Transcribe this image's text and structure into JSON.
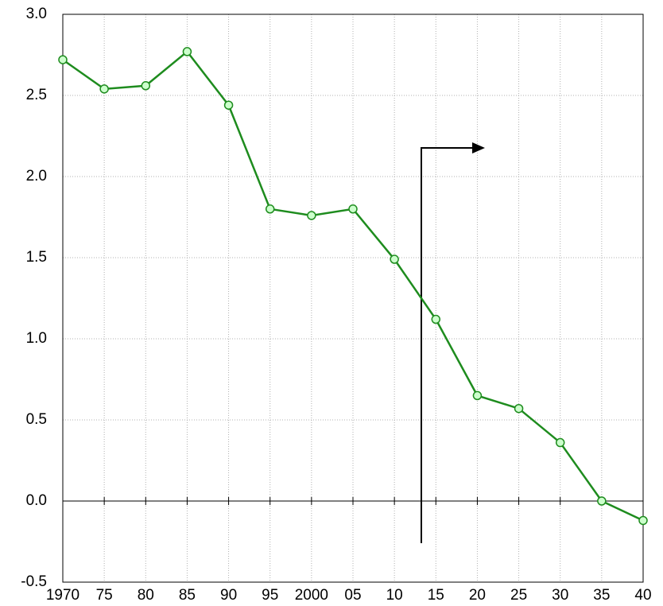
{
  "chart_data": {
    "type": "line",
    "x": [
      1970,
      1975,
      1980,
      1985,
      1990,
      1995,
      2000,
      2005,
      2010,
      2015,
      2020,
      2025,
      2030,
      2035,
      2040
    ],
    "series": [
      {
        "color": "#1e8c1e",
        "marker_fill": "#ccffcc",
        "values": [
          2.72,
          2.54,
          2.56,
          2.77,
          2.44,
          1.8,
          1.76,
          1.8,
          1.49,
          1.12,
          0.65,
          0.57,
          0.36,
          0.0,
          -0.12
        ]
      }
    ],
    "xlim": [
      1970,
      2040
    ],
    "xticks": [
      1970,
      {
        "value": 1975,
        "label": "75"
      },
      {
        "value": 1980,
        "label": "80"
      },
      {
        "value": 1985,
        "label": "85"
      },
      {
        "value": 1990,
        "label": "90"
      },
      {
        "value": 1995,
        "label": "95"
      },
      2000,
      {
        "value": 2005,
        "label": "05"
      },
      {
        "value": 2010,
        "label": "10"
      },
      {
        "value": 2015,
        "label": "15"
      },
      {
        "value": 2020,
        "label": "20"
      },
      {
        "value": 2025,
        "label": "25"
      },
      {
        "value": 2030,
        "label": "30"
      },
      {
        "value": 2035,
        "label": "35"
      },
      {
        "value": 2040,
        "label": "40"
      }
    ],
    "ylim": [
      -0.5,
      3.0
    ],
    "yticks": [
      {
        "value": -0.5,
        "label": "-0.5"
      },
      {
        "value": 0,
        "label": "0.0"
      },
      {
        "value": 0.5,
        "label": "0.5"
      },
      {
        "value": 1.0,
        "label": "1.0"
      },
      {
        "value": 1.5,
        "label": "1.5"
      },
      {
        "value": 2.0,
        "label": "2.0"
      },
      {
        "value": 2.5,
        "label": "2.5"
      },
      {
        "value": 3.0,
        "label": "3.0"
      }
    ],
    "grid": true
  }
}
